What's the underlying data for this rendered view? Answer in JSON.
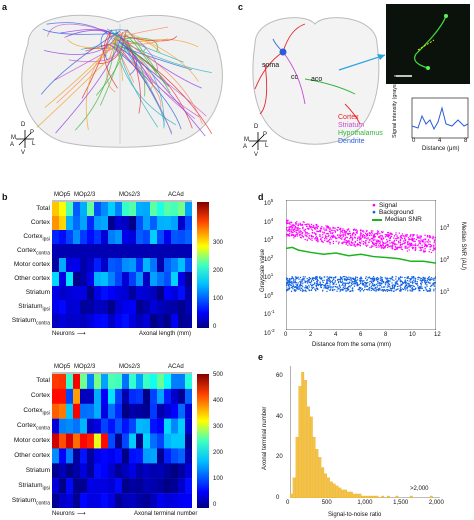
{
  "panels": {
    "a": "a",
    "c": "c",
    "b": "b",
    "d": "d",
    "e": "e"
  },
  "orientation": {
    "D": "D",
    "V": "V",
    "P": "P",
    "A": "A",
    "M": "M",
    "L": "L"
  },
  "panel_c": {
    "soma": "soma",
    "cc": "cc",
    "aco": "aco",
    "legend": [
      {
        "label": "Cortex",
        "color": "#e8252b"
      },
      {
        "label": "Striatum",
        "color": "#c34ecf"
      },
      {
        "label": "Hypothalamus",
        "color": "#37b23a"
      },
      {
        "label": "Dendrite",
        "color": "#2b5bd8"
      }
    ],
    "inset_ylabel": "Signal intensity (grayscale value)",
    "inset_xlabel": "Distance (μm)",
    "inset_xticks": [
      "0",
      "4",
      "8"
    ]
  },
  "heatmap_top": {
    "regions": [
      "MOp5",
      "MOp2/3",
      "MOs2/3",
      "ACAd"
    ],
    "rows": [
      "Total",
      "Cortex",
      "Cortex_ipsi",
      "Cortex_contra",
      "Motor cortex",
      "Other cortex",
      "Striatum",
      "Striatum_ipsi",
      "Striatum_contra"
    ],
    "row_main": [
      "Total",
      "Cortex",
      "Cortex",
      "Cortex",
      "Motor cortex",
      "Other cortex",
      "Striatum",
      "Striatum",
      "Striatum"
    ],
    "row_sub": [
      "",
      "",
      "ipsi",
      "contra",
      "",
      "",
      "",
      "ipsi",
      "contra"
    ],
    "xlabel": "Neurons",
    "cbar_label": "Axonal length (mm)",
    "cbar_ticks": [
      "300",
      "200",
      "100",
      "0"
    ]
  },
  "heatmap_bottom": {
    "regions": [
      "MOp5",
      "MOp2/3",
      "MOs2/3",
      "ACAd"
    ],
    "row_main": [
      "Total",
      "Cortex",
      "Cortex",
      "Cortex",
      "Motor cortex",
      "Other cortex",
      "Striatum",
      "Striatum",
      "Striatum"
    ],
    "row_sub": [
      "",
      "",
      "ipsi",
      "contra",
      "",
      "",
      "",
      "ipsi",
      "contra"
    ],
    "xlabel": "Neurons",
    "cbar_label": "Axonal terminal number",
    "cbar_ticks": [
      "500",
      "400",
      "300",
      "200",
      "100",
      "0"
    ]
  },
  "chart_data": [
    {
      "type": "scatter",
      "title": "",
      "xlabel": "Distance from the soma (mm)",
      "ylabel": "Grayscale value",
      "y2label": "Median SNR (AU)",
      "xlim": [
        0,
        12
      ],
      "xticks": [
        "0",
        "2",
        "4",
        "6",
        "8",
        "10",
        "12"
      ],
      "yticks": [
        "10^5",
        "10^4",
        "10^3",
        "10^2",
        "10^1",
        "10^0",
        "10^-1",
        "10^-2"
      ],
      "y2ticks": [
        "10^3",
        "10^2",
        "10^1"
      ],
      "y_scale": "log",
      "legend": [
        "Signal",
        "Background",
        "Median SNR"
      ],
      "series": [
        {
          "name": "Signal",
          "color": "#ff00ff",
          "y_center": [
            3000,
            2500,
            1800,
            1500,
            1200,
            1000,
            900,
            800,
            700,
            600,
            500,
            450,
            400
          ]
        },
        {
          "name": "Background",
          "color": "#1060e0",
          "y_center": [
            3,
            3,
            3,
            3,
            3,
            3,
            3,
            3,
            3,
            3,
            3,
            3,
            3
          ]
        },
        {
          "name": "Median SNR",
          "color": "#1db31d",
          "x": [
            0,
            0.5,
            1,
            2,
            3,
            4,
            5,
            6,
            7,
            8,
            9,
            10,
            11,
            12
          ],
          "y": [
            25,
            28,
            20,
            15,
            12,
            14,
            10,
            12,
            9,
            8,
            7,
            5,
            5,
            4
          ]
        }
      ]
    },
    {
      "type": "bar",
      "title": "",
      "xlabel": "Signal-to-noise ratio",
      "ylabel": "Axonal terminal number",
      "ylim": [
        0,
        65
      ],
      "yticks": [
        "60",
        "40",
        "20",
        "0"
      ],
      "xticks": [
        "0",
        "500",
        "1,000",
        "1,500",
        "2,000"
      ],
      "annotation": ">2,000",
      "color": "#f5c242",
      "bin_width": 40,
      "values": [
        2,
        10,
        30,
        55,
        62,
        58,
        45,
        40,
        30,
        24,
        20,
        15,
        12,
        10,
        8,
        7,
        6,
        5,
        4,
        4,
        3,
        3,
        2,
        2,
        2,
        1,
        1,
        1,
        1,
        1,
        1,
        0,
        1,
        0,
        1,
        0,
        0,
        1,
        0,
        0,
        0,
        0,
        1,
        0,
        0,
        0,
        0,
        0,
        0,
        1
      ]
    }
  ]
}
